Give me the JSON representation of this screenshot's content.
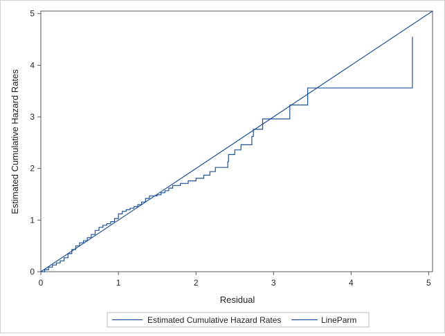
{
  "chart_data": {
    "type": "line",
    "title": "",
    "xlabel": "Residual",
    "ylabel": "Estimated Cumulative Hazard Rates",
    "xlim": [
      0,
      5.05
    ],
    "ylim": [
      0,
      5.05
    ],
    "x_ticks": [
      "0",
      "1",
      "2",
      "3",
      "4",
      "5"
    ],
    "y_ticks": [
      "0",
      "1",
      "2",
      "3",
      "4",
      "5"
    ],
    "grid": false,
    "legend_position": "bottom",
    "series_color": "#1c4f96",
    "series": [
      {
        "name": "Estimated Cumulative Hazard Rates",
        "style": "step",
        "points": [
          [
            0.0,
            0.0
          ],
          [
            0.05,
            0.04
          ],
          [
            0.1,
            0.09
          ],
          [
            0.15,
            0.13
          ],
          [
            0.2,
            0.17
          ],
          [
            0.25,
            0.21
          ],
          [
            0.3,
            0.27
          ],
          [
            0.35,
            0.35
          ],
          [
            0.4,
            0.43
          ],
          [
            0.45,
            0.5
          ],
          [
            0.5,
            0.56
          ],
          [
            0.55,
            0.6
          ],
          [
            0.6,
            0.66
          ],
          [
            0.65,
            0.72
          ],
          [
            0.7,
            0.8
          ],
          [
            0.75,
            0.86
          ],
          [
            0.8,
            0.9
          ],
          [
            0.85,
            0.93
          ],
          [
            0.9,
            0.97
          ],
          [
            0.95,
            1.03
          ],
          [
            1.0,
            1.12
          ],
          [
            1.05,
            1.17
          ],
          [
            1.1,
            1.2
          ],
          [
            1.15,
            1.23
          ],
          [
            1.2,
            1.26
          ],
          [
            1.25,
            1.3
          ],
          [
            1.3,
            1.35
          ],
          [
            1.35,
            1.42
          ],
          [
            1.4,
            1.47
          ],
          [
            1.5,
            1.49
          ],
          [
            1.55,
            1.53
          ],
          [
            1.6,
            1.57
          ],
          [
            1.65,
            1.62
          ],
          [
            1.7,
            1.67
          ],
          [
            1.8,
            1.71
          ],
          [
            1.9,
            1.76
          ],
          [
            2.0,
            1.81
          ],
          [
            2.1,
            1.87
          ],
          [
            2.18,
            1.94
          ],
          [
            2.25,
            2.02
          ],
          [
            2.41,
            2.13
          ],
          [
            2.42,
            2.27
          ],
          [
            2.5,
            2.36
          ],
          [
            2.58,
            2.46
          ],
          [
            2.72,
            2.62
          ],
          [
            2.74,
            2.76
          ],
          [
            2.86,
            2.96
          ],
          [
            3.21,
            3.23
          ],
          [
            3.44,
            3.56
          ],
          [
            4.79,
            4.55
          ]
        ]
      },
      {
        "name": "LineParm",
        "style": "line",
        "points": [
          [
            0.0,
            0.0
          ],
          [
            5.05,
            5.05
          ]
        ]
      }
    ]
  }
}
